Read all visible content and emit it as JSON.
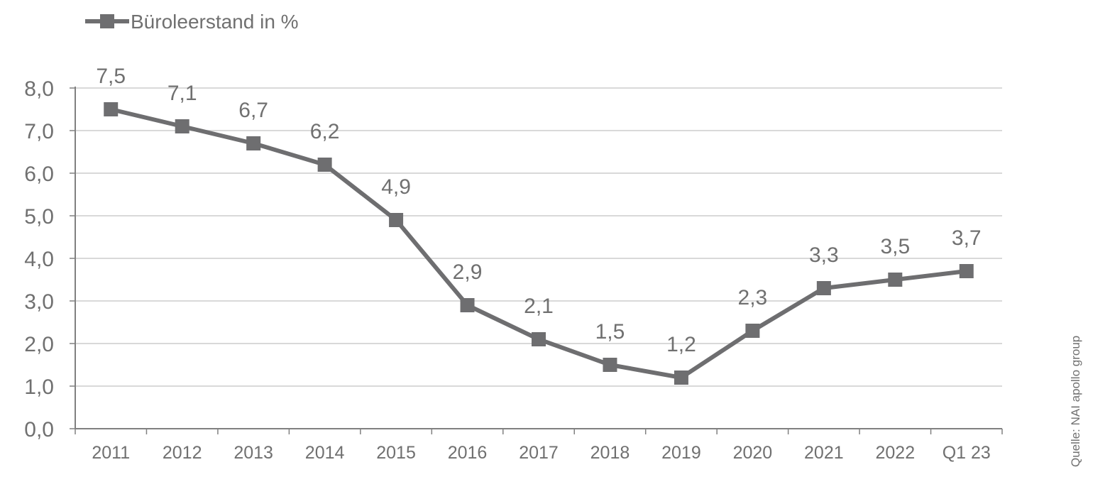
{
  "chart_data": {
    "type": "line",
    "title": "",
    "xlabel": "",
    "ylabel": "",
    "categories": [
      "2011",
      "2012",
      "2013",
      "2014",
      "2015",
      "2016",
      "2017",
      "2018",
      "2019",
      "2020",
      "2021",
      "2022",
      "Q1 23"
    ],
    "series": [
      {
        "name": "Büroleerstand in %",
        "values": [
          7.5,
          7.1,
          6.7,
          6.2,
          4.9,
          2.9,
          2.1,
          1.5,
          1.2,
          2.3,
          3.3,
          3.5,
          3.7
        ],
        "labels": [
          "7,5",
          "7,1",
          "6,7",
          "6,2",
          "4,9",
          "2,9",
          "2,1",
          "1,5",
          "1,2",
          "2,3",
          "3,3",
          "3,5",
          "3,7"
        ]
      }
    ],
    "yticks": [
      0,
      1,
      2,
      3,
      4,
      5,
      6,
      7,
      8
    ],
    "ytick_labels": [
      "0,0",
      "1,0",
      "2,0",
      "3,0",
      "4,0",
      "5,0",
      "6,0",
      "7,0",
      "8,0"
    ],
    "ylim": [
      0,
      8
    ],
    "grid": true,
    "legend": "top-left",
    "colors": {
      "line": "#6e6e70",
      "grid": "#d9d9d9",
      "axis": "#808080",
      "text": "#707070"
    }
  },
  "source_note": "Quelle: NAI apollo group"
}
